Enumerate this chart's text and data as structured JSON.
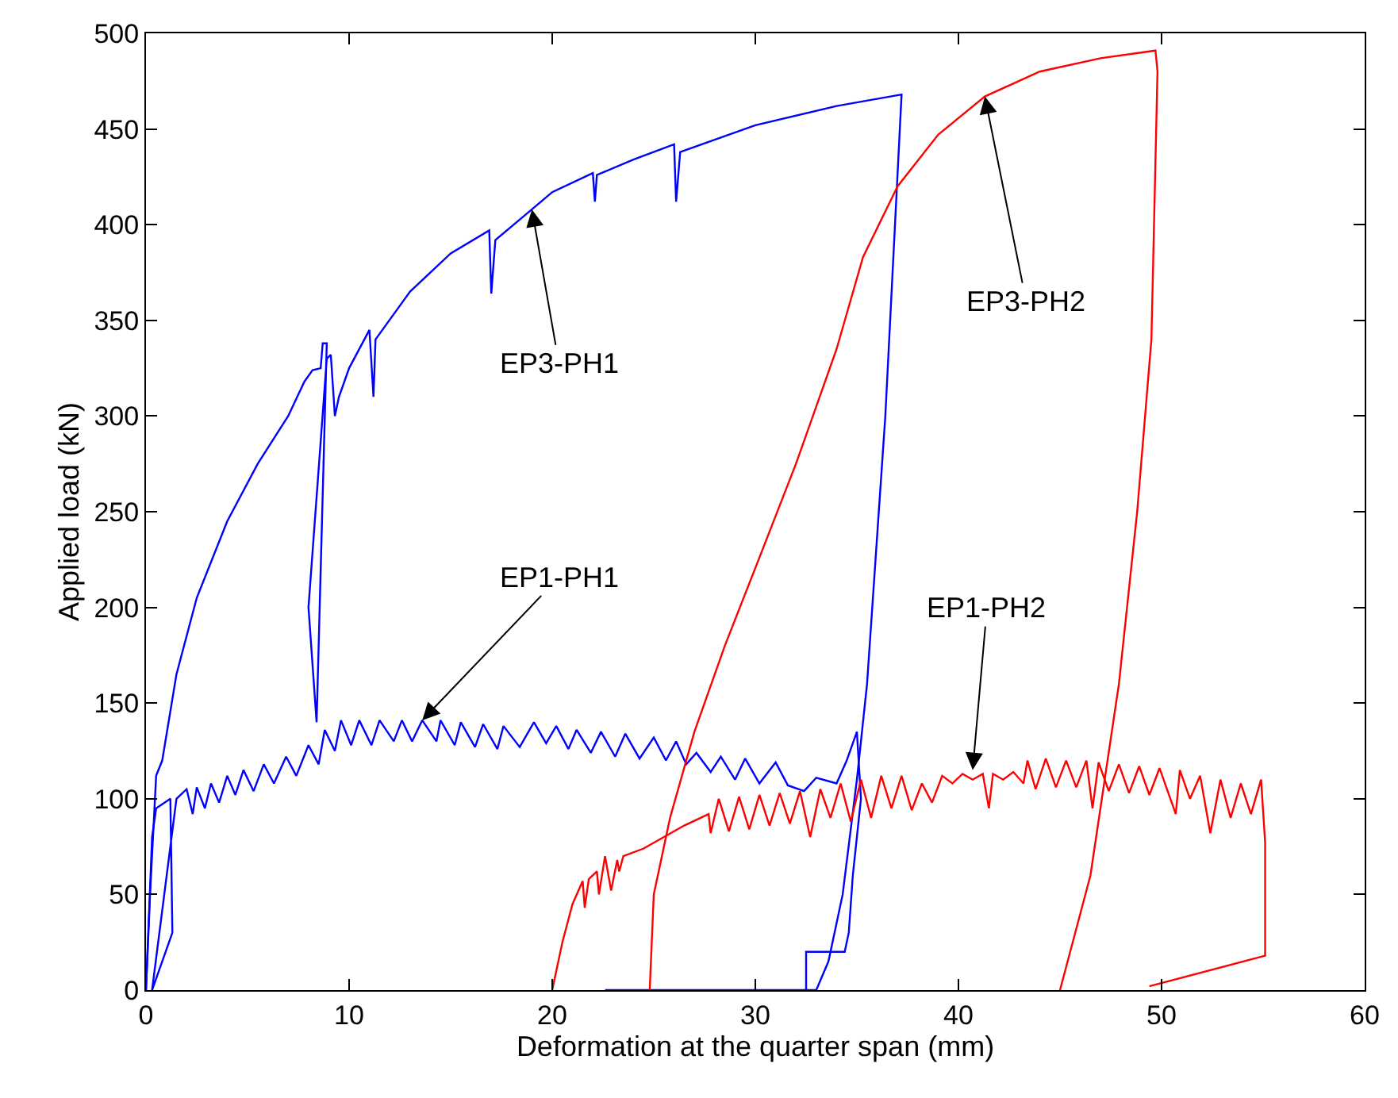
{
  "chart_data": {
    "type": "line",
    "xlabel": "Deformation at the quarter span (mm)",
    "ylabel": "Applied load (kN)",
    "xlim": [
      0,
      60
    ],
    "xticks": [
      0,
      10,
      20,
      30,
      40,
      50,
      60
    ],
    "ylim": [
      0,
      500
    ],
    "yticks": [
      0,
      50,
      100,
      150,
      200,
      250,
      300,
      350,
      400,
      450,
      500
    ],
    "annotations": [
      {
        "text": "EP3-PH1",
        "x": 19,
        "y": 408
      },
      {
        "text": "EP3-PH2",
        "x": 41.3,
        "y": 467
      },
      {
        "text": "EP1-PH1",
        "x": 13.6,
        "y": 141
      },
      {
        "text": "EP1-PH2",
        "x": 40.7,
        "y": 115
      }
    ],
    "series": [
      {
        "color": "#0000ff",
        "x": [
          0,
          0.2,
          0.5,
          0.8,
          1.5,
          2.5,
          4,
          5.5,
          7,
          7.8,
          8.2,
          8.6,
          8.7,
          8.9,
          8.4,
          8.0,
          8.9,
          9.1,
          9.3,
          9.5,
          10,
          11,
          11.2,
          11.3,
          13,
          15,
          16.9,
          17,
          17.2,
          19,
          20,
          22,
          22.1,
          22.2,
          24,
          26,
          26.1,
          26.3,
          30,
          34,
          37.2,
          36.4,
          35.5,
          35.0,
          34.3,
          33.6,
          33.0,
          22.6
        ],
        "values": [
          0,
          50,
          112,
          120,
          165,
          205,
          245,
          275,
          300,
          318,
          324,
          325,
          338,
          338,
          140,
          200,
          330,
          332,
          300,
          310,
          325,
          345,
          310,
          340,
          365,
          385,
          397,
          364,
          392,
          408,
          417,
          427,
          412,
          426,
          434,
          442,
          412,
          438,
          452,
          462,
          468,
          300,
          160,
          110,
          50,
          15,
          0,
          0
        ]
      },
      {
        "color": "#0000ff",
        "x": [
          0,
          0.3,
          0.5,
          1.2,
          1.3,
          0.3,
          1.5,
          2,
          2.3,
          2.5,
          2.9,
          3.2,
          3.6,
          4,
          4.4,
          4.8,
          5.3,
          5.8,
          6.3,
          6.9,
          7.4,
          8,
          8.5,
          8.8,
          9.3,
          9.6,
          10.1,
          10.5,
          11.1,
          11.5,
          12.2,
          12.6,
          13.1,
          13.6,
          14.3,
          14.5,
          15.2,
          15.5,
          16.2,
          16.6,
          17.3,
          17.6,
          18.4,
          19.1,
          19.7,
          20.2,
          20.8,
          21.2,
          21.9,
          22.4,
          23.1,
          23.6,
          24.3,
          25,
          25.6,
          26.1,
          26.6,
          27.1,
          27.8,
          28.3,
          29,
          29.5,
          30.2,
          31,
          31.6,
          32.4,
          33,
          34,
          34.5,
          35.0,
          35.2,
          34.8,
          34.6,
          34.4,
          32.5,
          32.5
        ],
        "values": [
          0,
          80,
          95,
          100,
          30,
          0,
          100,
          105,
          92,
          106,
          95,
          108,
          98,
          112,
          102,
          115,
          104,
          118,
          108,
          122,
          112,
          128,
          118,
          136,
          125,
          141,
          128,
          141,
          128,
          141,
          130,
          141,
          130,
          141,
          130,
          141,
          128,
          140,
          127,
          139,
          126,
          138,
          127,
          140,
          129,
          138,
          126,
          136,
          124,
          135,
          122,
          134,
          121,
          132,
          120,
          130,
          118,
          124,
          114,
          122,
          110,
          121,
          108,
          119,
          107,
          104,
          111,
          108,
          120,
          135,
          100,
          60,
          30,
          20,
          20,
          0
        ]
      },
      {
        "color": "#ff0000",
        "x": [
          20,
          20.5,
          21,
          21.5,
          21.6,
          21.8,
          22.2,
          22.3,
          22.6,
          22.9,
          23.2,
          23.3,
          23.5,
          24.5,
          25.5,
          26.5,
          27.7,
          27.8,
          28.2,
          28.7,
          29.2,
          29.7,
          30.2,
          30.7,
          31.2,
          31.7,
          32.2,
          32.7,
          33.2,
          33.7,
          34.2,
          34.7,
          35.2,
          35.7,
          36.2,
          36.7,
          37.2,
          37.7,
          38.2,
          38.7,
          39.2,
          39.7,
          40.2,
          40.7,
          41.2,
          41.5,
          41.7,
          42.2,
          42.7,
          43.2,
          43.4,
          43.8,
          44.3,
          44.8,
          45.3,
          45.8,
          46.3,
          46.6,
          46.9,
          47.4,
          47.9,
          48.4,
          48.9,
          49.4,
          49.9,
          50.4,
          50.7,
          50.9,
          51.4,
          51.9,
          52.4,
          52.9,
          53.4,
          53.9,
          54.4,
          54.9,
          55.1,
          55.1,
          49.4
        ],
        "values": [
          0,
          25,
          45,
          57,
          43,
          58,
          62,
          50,
          70,
          52,
          68,
          62,
          70,
          74,
          80,
          86,
          92,
          82,
          100,
          83,
          101,
          84,
          102,
          86,
          103,
          87,
          104,
          80,
          105,
          90,
          108,
          88,
          110,
          90,
          112,
          95,
          112,
          94,
          108,
          98,
          112,
          108,
          113,
          110,
          113,
          95,
          113,
          110,
          114,
          108,
          120,
          105,
          121,
          106,
          120,
          106,
          120,
          95,
          119,
          104,
          118,
          103,
          117,
          102,
          116,
          101,
          92,
          115,
          100,
          112,
          82,
          110,
          90,
          108,
          92,
          110,
          77,
          18,
          2
        ]
      },
      {
        "color": "#ff0000",
        "x": [
          24.8,
          25.0,
          25.8,
          27,
          28.5,
          30.2,
          32,
          34,
          35.3,
          37,
          39,
          41.3,
          44,
          47,
          49.7,
          49.8,
          49.5,
          48.8,
          47.9,
          46.5,
          45
        ],
        "values": [
          0,
          50,
          90,
          135,
          180,
          226,
          275,
          335,
          383,
          420,
          447,
          467,
          480,
          487,
          491,
          480,
          340,
          250,
          160,
          60,
          0
        ]
      }
    ]
  }
}
